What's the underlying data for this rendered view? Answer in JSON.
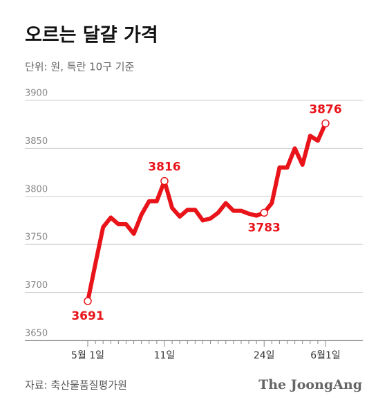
{
  "chart_data": {
    "type": "line",
    "title": "오르는 달걀 가격",
    "subtitle": "단위: 원, 특란 10구 기준",
    "categories": [
      "5월 1일",
      null,
      null,
      null,
      null,
      null,
      null,
      null,
      null,
      null,
      "11일",
      null,
      null,
      null,
      null,
      null,
      null,
      null,
      null,
      null,
      null,
      null,
      null,
      "24일",
      null,
      null,
      null,
      null,
      null,
      null,
      null,
      "6월1일"
    ],
    "series": [
      {
        "name": "특란 10구",
        "color": "#e8141a",
        "values": [
          3691,
          3730,
          3768,
          3778,
          3771,
          3771,
          3761,
          3781,
          3795,
          3795,
          3816,
          3788,
          3779,
          3786,
          3786,
          3775,
          3777,
          3783,
          3793,
          3785,
          3785,
          3782,
          3780,
          3783,
          3793,
          3830,
          3830,
          3850,
          3833,
          3863,
          3858,
          3876
        ]
      }
    ],
    "ylim": [
      3650,
      3900
    ],
    "yticks": [
      3650,
      3700,
      3750,
      3800,
      3850,
      3900
    ],
    "grid": true,
    "source": "자료: 축산물품질평가원",
    "publisher": "The JoongAng"
  }
}
